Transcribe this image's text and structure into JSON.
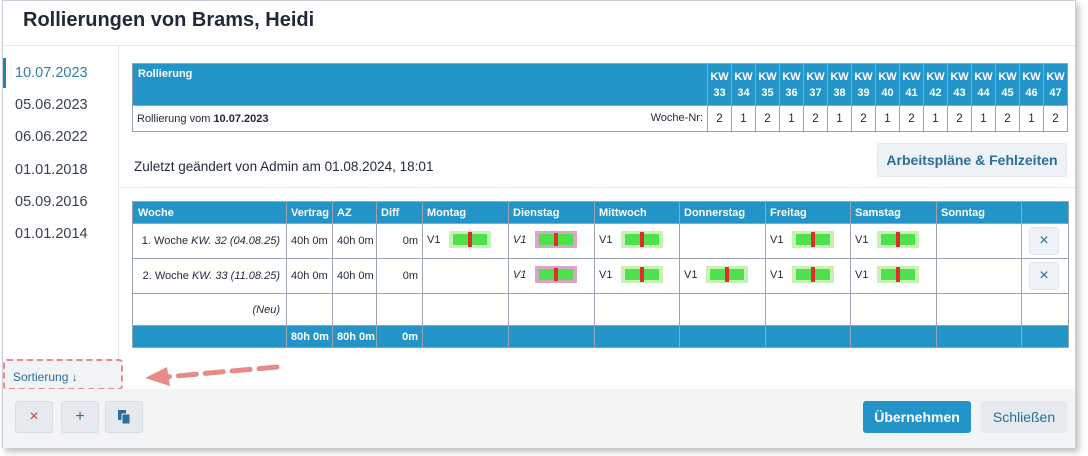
{
  "dialog": {
    "title": "Rollierungen von Brams, Heidi"
  },
  "sidebar": {
    "items": [
      {
        "label": "10.07.2023",
        "active": true
      },
      {
        "label": "05.06.2023",
        "active": false
      },
      {
        "label": "06.06.2022",
        "active": false
      },
      {
        "label": "01.01.2018",
        "active": false
      },
      {
        "label": "05.09.2016",
        "active": false
      },
      {
        "label": "01.01.2014",
        "active": false
      }
    ]
  },
  "rotation_table": {
    "header_label": "Rollierung",
    "kw_prefix": "KW",
    "weeks": [
      "33",
      "34",
      "35",
      "36",
      "37",
      "38",
      "39",
      "40",
      "41",
      "42",
      "43",
      "44",
      "45",
      "46",
      "47"
    ],
    "row_prefix": "Rollierung vom",
    "row_date": "10.07.2023",
    "woche_nr_label": "Woche-Nr:",
    "woche_nrs": [
      "2",
      "1",
      "2",
      "1",
      "2",
      "1",
      "2",
      "1",
      "2",
      "1",
      "2",
      "1",
      "2",
      "1",
      "2"
    ]
  },
  "changed_text": "Zuletzt geändert von Admin am 01.08.2024, 18:01",
  "schedules_button": "Arbeitspläne & Fehlzeiten",
  "week_table": {
    "headers": [
      "Woche",
      "Vertrag",
      "AZ",
      "Diff",
      "Montag",
      "Dienstag",
      "Mittwoch",
      "Donnerstag",
      "Freitag",
      "Samstag",
      "Sonntag"
    ],
    "rows": [
      {
        "woche": "1. Woche",
        "kw": "KW. 32 (04.08.25)",
        "vertrag": "40h 0m",
        "az": "40h 0m",
        "diff": "0m"
      },
      {
        "woche": "2. Woche",
        "kw": "KW. 33 (11.08.25)",
        "vertrag": "40h 0m",
        "az": "40h 0m",
        "diff": "0m"
      }
    ],
    "new_row_label": "(Neu)",
    "totals": {
      "vertrag": "80h 0m",
      "az": "80h 0m",
      "diff": "0m"
    },
    "shift_label": "V1"
  },
  "sort_label": "Sortierung ↓",
  "footer": {
    "delete_icon": "×",
    "add_icon": "+",
    "copy_icon": "copy-icon",
    "apply_label": "Übernehmen",
    "close_label": "Schließen"
  },
  "colors": {
    "accent": "#2294c8",
    "shift_green": "#4ee04e",
    "shift_mark": "#e02c2c",
    "annotation": "#e98a8a"
  }
}
